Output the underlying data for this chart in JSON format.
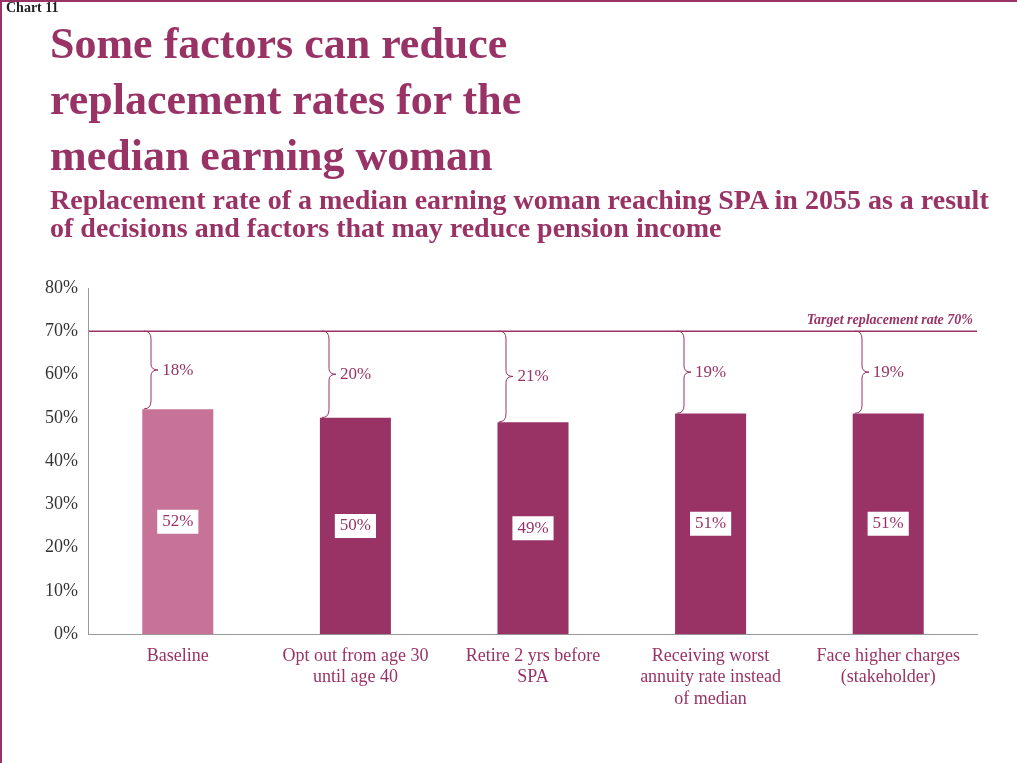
{
  "chart_data": {
    "type": "bar",
    "title": "Some factors can reduce replacement rates for the median earning woman",
    "subtitle": "Replacement rate of a median earning woman reaching SPA in 2055 as a result of decisions and factors that may reduce pension income",
    "categories": [
      "Baseline",
      "Opt out from age 30 until age 40",
      "Retire 2 yrs before SPA",
      "Receiving worst annuity rate instead of median",
      "Face higher charges (stakeholder)"
    ],
    "values": [
      52,
      50,
      49,
      51,
      51
    ],
    "colors": [
      "#c77397",
      "#993366",
      "#993366",
      "#993366",
      "#993366"
    ],
    "value_labels": [
      "52%",
      "50%",
      "49%",
      "51%",
      "51%"
    ],
    "ylim": [
      0,
      80
    ],
    "yticks": [
      {
        "value": 0,
        "label": "0%"
      },
      {
        "value": 10,
        "label": "10%"
      },
      {
        "value": 20,
        "label": "20%"
      },
      {
        "value": 30,
        "label": "30%"
      },
      {
        "value": 40,
        "label": "40%"
      },
      {
        "value": 50,
        "label": "50%"
      },
      {
        "value": 60,
        "label": "60%"
      },
      {
        "value": 70,
        "label": "70%"
      },
      {
        "value": 80,
        "label": "80%"
      }
    ],
    "ref_lines": [
      {
        "axis": "y",
        "value": 70,
        "label": "Target replacement rate 70%",
        "color": "#993366"
      }
    ],
    "annotations": [
      "Chart 11",
      "18%",
      "20%",
      "21%",
      "19%",
      "19%"
    ],
    "grid": false,
    "legend": false
  }
}
